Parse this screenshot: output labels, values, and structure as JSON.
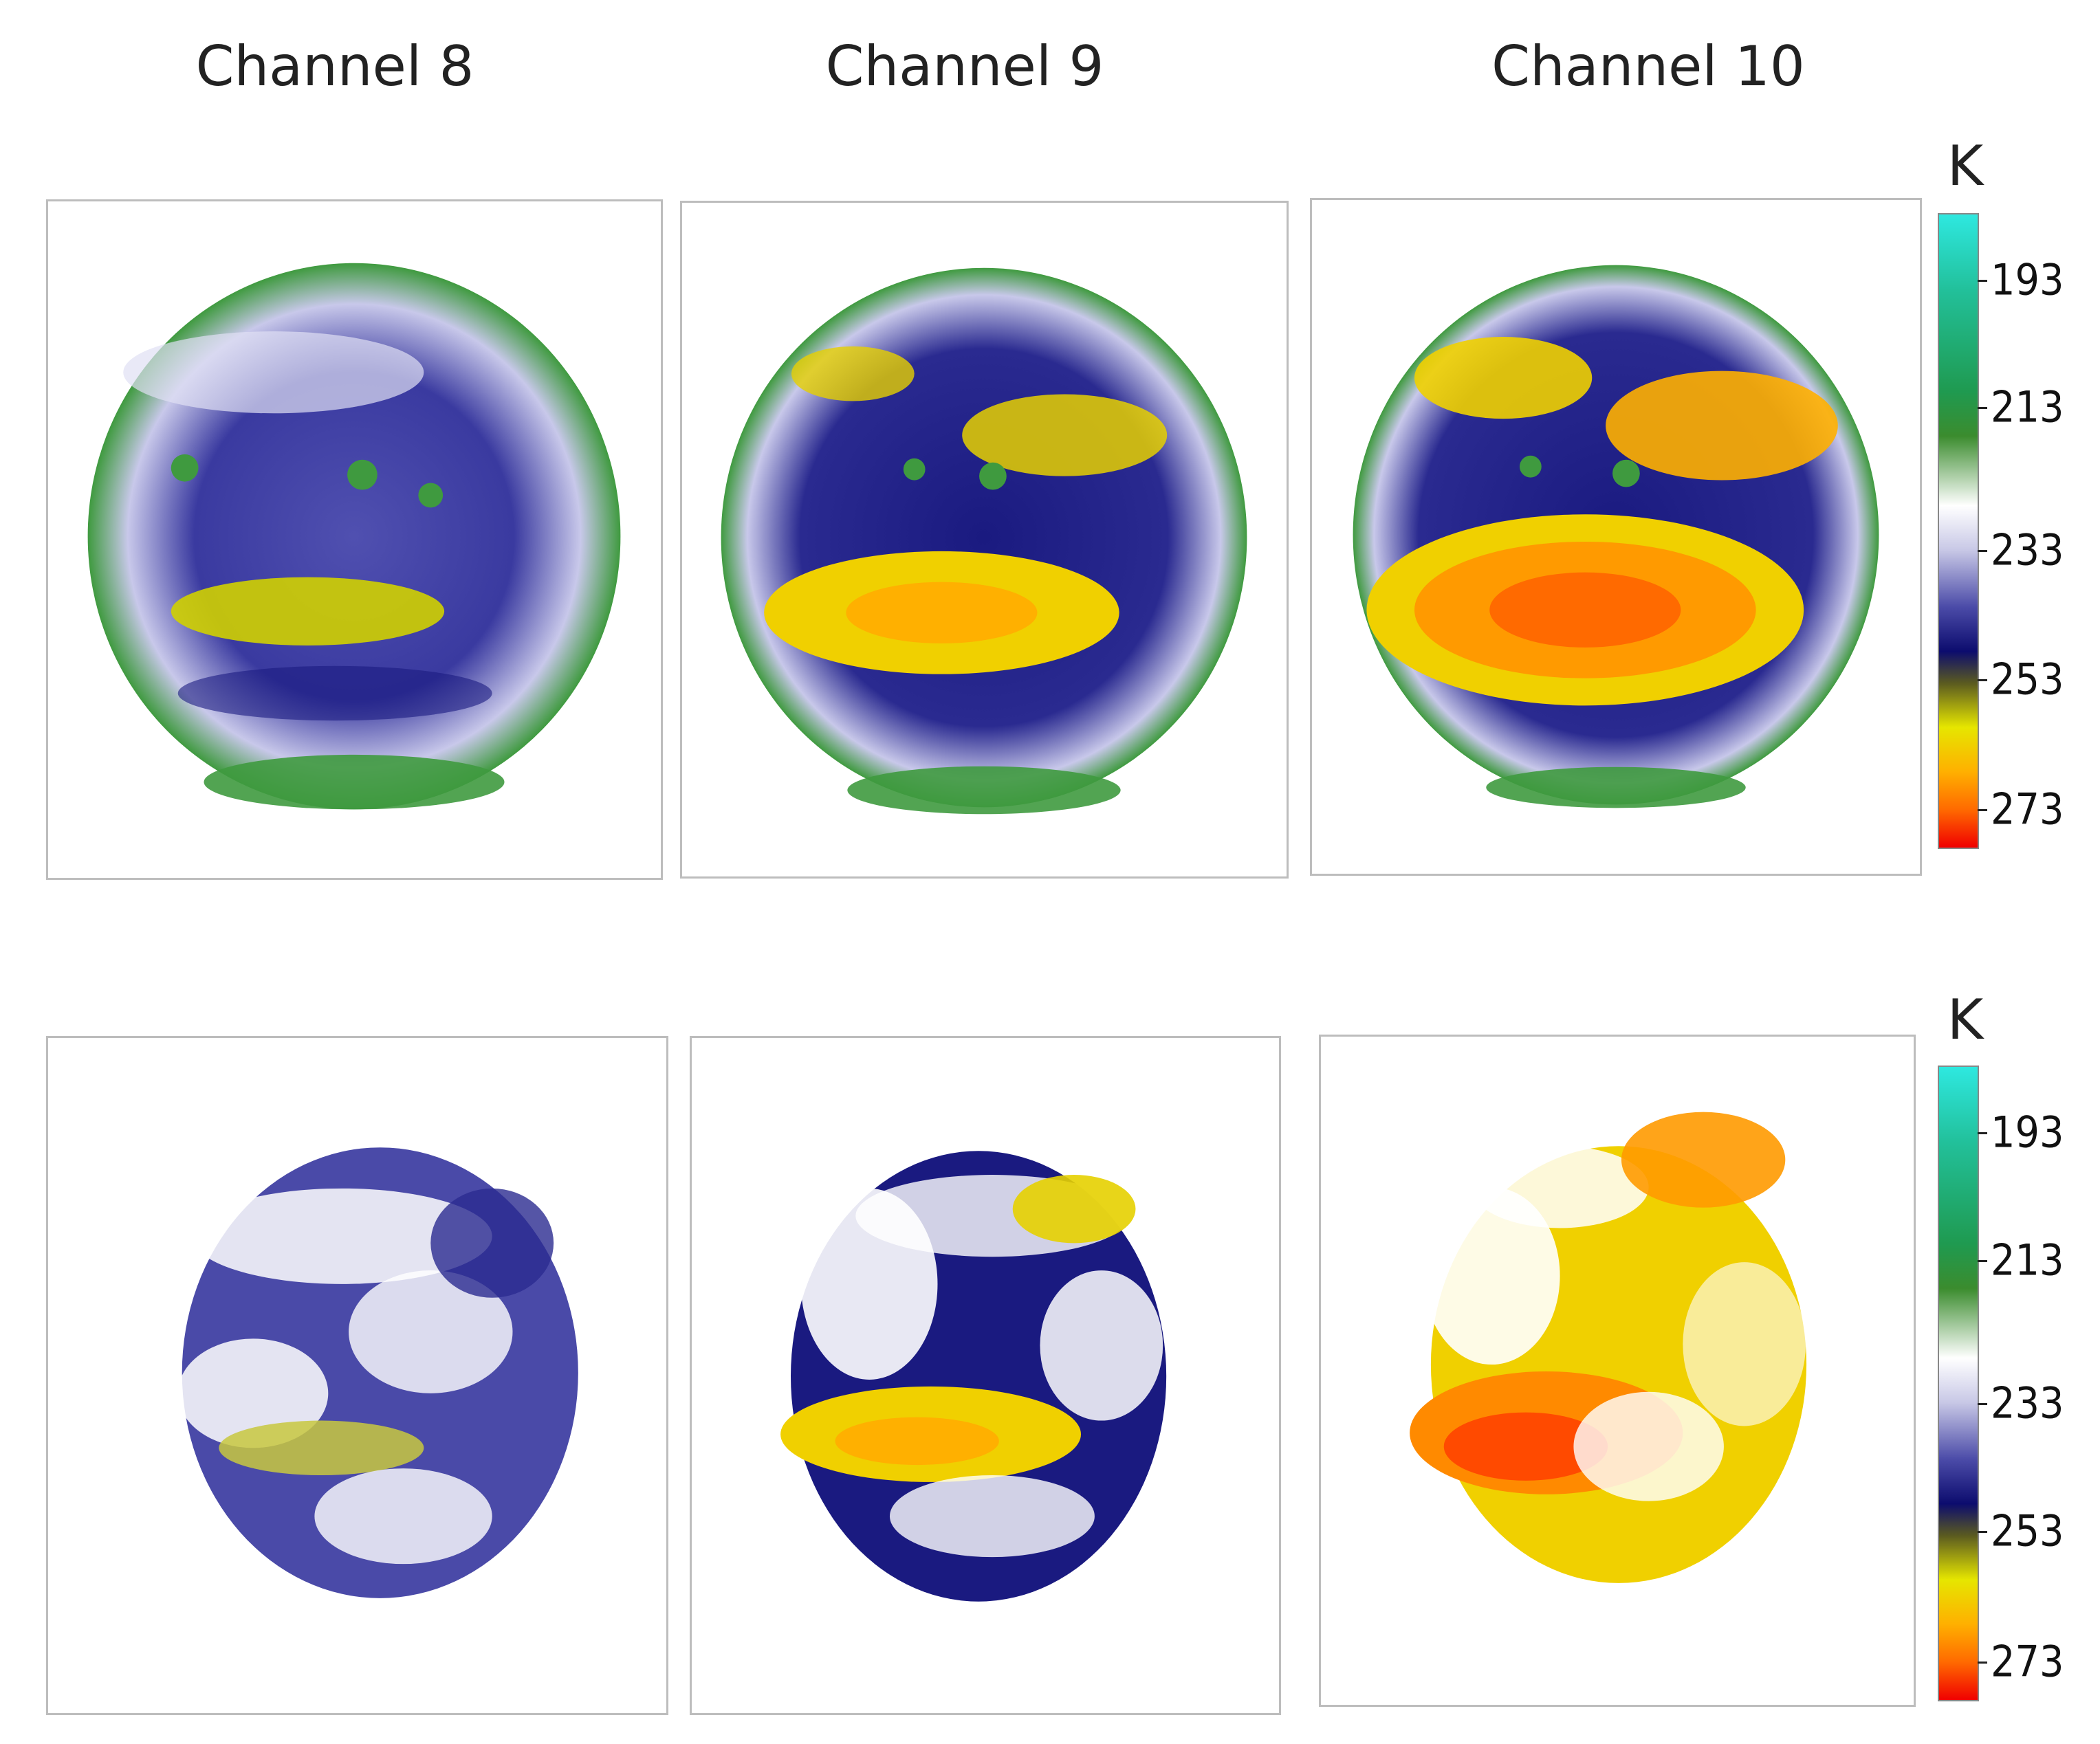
{
  "columns": [
    "Channel 8",
    "Channel 9",
    "Channel 10"
  ],
  "colorbar": {
    "unit": "K",
    "ticks": [
      "193",
      "213",
      "233",
      "253",
      "273"
    ]
  },
  "colors": {
    "ch8_main": "#3a3aa0",
    "ch8_accent": "#d8d800",
    "ch9_main": "#1a1a80",
    "ch9_accent": "#f0d000",
    "ch10_main": "#1a1a80",
    "ch10_accent": "#ff8a00",
    "edge": "#3f9a3f"
  }
}
